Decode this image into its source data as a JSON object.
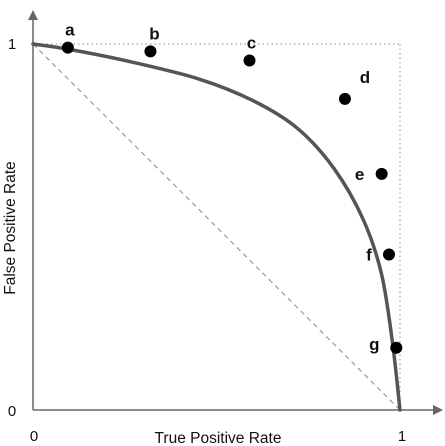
{
  "chart_data": {
    "type": "line",
    "title": "",
    "xlabel": "True Positive Rate",
    "ylabel": "False Positive Rate",
    "xlim": [
      0,
      1
    ],
    "ylim": [
      0,
      1
    ],
    "x_ticks": [
      "0",
      "1"
    ],
    "y_ticks": [
      "0",
      "1"
    ],
    "grid": false,
    "series": [
      {
        "x": [
          0.0,
          0.1,
          0.25,
          0.45,
          0.6,
          0.72,
          0.82,
          0.9,
          0.95,
          0.98,
          1.0
        ],
        "y": [
          1.0,
          0.985,
          0.955,
          0.905,
          0.845,
          0.77,
          0.66,
          0.52,
          0.37,
          0.18,
          0.0
        ]
      }
    ],
    "points": [
      {
        "label": "a",
        "x": 0.095,
        "y": 0.99
      },
      {
        "label": "b",
        "x": 0.32,
        "y": 0.98
      },
      {
        "label": "c",
        "x": 0.59,
        "y": 0.955
      },
      {
        "label": "d",
        "x": 0.85,
        "y": 0.85
      },
      {
        "label": "e",
        "x": 0.95,
        "y": 0.645
      },
      {
        "label": "f",
        "x": 0.97,
        "y": 0.425
      },
      {
        "label": "g",
        "x": 0.99,
        "y": 0.17
      }
    ],
    "reference_lines": [
      {
        "type": "diagonal",
        "from": [
          0,
          1
        ],
        "to": [
          1,
          0
        ],
        "style": "dashed"
      },
      {
        "type": "frame",
        "style": "dotted"
      }
    ],
    "colors": {
      "curve": "#555555",
      "points": "#000000",
      "axes": "#666666",
      "reference": "#888888"
    }
  }
}
